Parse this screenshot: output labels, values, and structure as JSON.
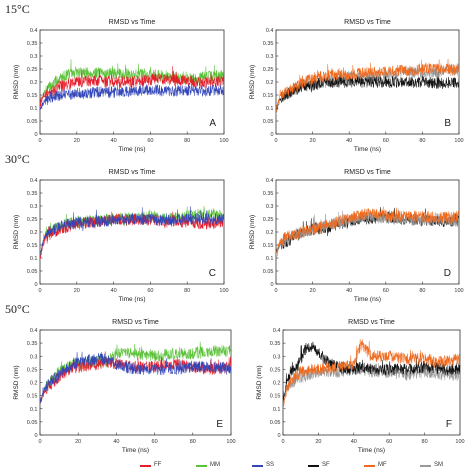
{
  "section_labels": [
    "15°C",
    "30°C",
    "50°C"
  ],
  "colors": {
    "FF": "#e41e2b",
    "MM": "#5cc23a",
    "SS": "#3346b8",
    "SF": "#111111",
    "MF": "#f06a1e",
    "SM": "#999999"
  },
  "legend": [
    {
      "name": "FF",
      "color": "#e41e2b"
    },
    {
      "name": "MM",
      "color": "#5cc23a"
    },
    {
      "name": "SS",
      "color": "#3346b8"
    },
    {
      "name": "SF",
      "color": "#111111"
    },
    {
      "name": "MF",
      "color": "#f06a1e"
    },
    {
      "name": "SM",
      "color": "#999999"
    }
  ],
  "chart_data": [
    {
      "type": "line",
      "panel_label": "A",
      "temperature": "15°C",
      "title": "RMSD vs Time",
      "xlabel": "Time (ns)",
      "ylabel": "RMSD (nm)",
      "xlim": [
        0,
        100
      ],
      "ylim": [
        0,
        0.4
      ],
      "xticks": [
        "0",
        "20",
        "40",
        "60",
        "80",
        "100"
      ],
      "yticks": [
        "0",
        "0.05",
        "0.1",
        "0.15",
        "0.2",
        "0.25",
        "0.3",
        "0.35",
        "0.4"
      ],
      "series": [
        {
          "name": "MM",
          "x": [
            0,
            2,
            5,
            10,
            15,
            20,
            30,
            40,
            50,
            60,
            70,
            80,
            90,
            100
          ],
          "y": [
            0.11,
            0.16,
            0.18,
            0.21,
            0.23,
            0.235,
            0.235,
            0.23,
            0.23,
            0.23,
            0.22,
            0.21,
            0.22,
            0.225
          ]
        },
        {
          "name": "FF",
          "x": [
            0,
            2,
            5,
            10,
            15,
            20,
            30,
            40,
            50,
            60,
            70,
            80,
            90,
            100
          ],
          "y": [
            0.1,
            0.15,
            0.16,
            0.18,
            0.19,
            0.2,
            0.205,
            0.2,
            0.2,
            0.21,
            0.21,
            0.205,
            0.2,
            0.205
          ]
        },
        {
          "name": "SS",
          "x": [
            0,
            2,
            5,
            10,
            15,
            20,
            30,
            40,
            50,
            60,
            70,
            80,
            90,
            100
          ],
          "y": [
            0.1,
            0.12,
            0.14,
            0.15,
            0.15,
            0.155,
            0.16,
            0.16,
            0.165,
            0.17,
            0.165,
            0.17,
            0.165,
            0.17
          ]
        }
      ]
    },
    {
      "type": "line",
      "panel_label": "B",
      "temperature": "15°C",
      "title": "RMSD vs Time",
      "xlabel": "Time (ns)",
      "ylabel": "RMSD (nm)",
      "xlim": [
        0,
        100
      ],
      "ylim": [
        0,
        0.4
      ],
      "xticks": [
        "0",
        "20",
        "40",
        "60",
        "80",
        "100"
      ],
      "yticks": [
        "0",
        "0.05",
        "0.1",
        "0.15",
        "0.2",
        "0.25",
        "0.3",
        "0.35",
        "0.4"
      ],
      "series": [
        {
          "name": "SM",
          "x": [
            0,
            2,
            5,
            10,
            15,
            20,
            30,
            40,
            50,
            60,
            70,
            80,
            90,
            100
          ],
          "y": [
            0.08,
            0.13,
            0.15,
            0.17,
            0.19,
            0.2,
            0.21,
            0.22,
            0.22,
            0.23,
            0.24,
            0.23,
            0.24,
            0.25
          ]
        },
        {
          "name": "SF",
          "x": [
            0,
            2,
            5,
            10,
            15,
            20,
            30,
            40,
            50,
            60,
            70,
            80,
            90,
            100
          ],
          "y": [
            0.09,
            0.13,
            0.15,
            0.17,
            0.18,
            0.19,
            0.2,
            0.2,
            0.2,
            0.2,
            0.2,
            0.2,
            0.195,
            0.2
          ]
        },
        {
          "name": "MF",
          "x": [
            0,
            2,
            5,
            10,
            15,
            20,
            30,
            40,
            50,
            60,
            70,
            80,
            90,
            100
          ],
          "y": [
            0.09,
            0.14,
            0.16,
            0.18,
            0.2,
            0.215,
            0.225,
            0.23,
            0.235,
            0.24,
            0.245,
            0.25,
            0.25,
            0.245
          ]
        }
      ]
    },
    {
      "type": "line",
      "panel_label": "C",
      "temperature": "30°C",
      "title": "RMSD vs Time",
      "xlabel": "Time (ns)",
      "ylabel": "RMSD (nm)",
      "xlim": [
        0,
        100
      ],
      "ylim": [
        0,
        0.4
      ],
      "xticks": [
        "0",
        "20",
        "40",
        "60",
        "80",
        "100"
      ],
      "yticks": [
        "0",
        "0.05",
        "0.1",
        "0.15",
        "0.2",
        "0.25",
        "0.3",
        "0.35",
        "0.4"
      ],
      "series": [
        {
          "name": "MM",
          "x": [
            0,
            2,
            5,
            10,
            15,
            20,
            30,
            40,
            50,
            60,
            70,
            80,
            90,
            100
          ],
          "y": [
            0.1,
            0.17,
            0.2,
            0.22,
            0.235,
            0.24,
            0.245,
            0.25,
            0.255,
            0.26,
            0.25,
            0.26,
            0.27,
            0.26
          ]
        },
        {
          "name": "FF",
          "x": [
            0,
            2,
            5,
            10,
            15,
            20,
            30,
            40,
            50,
            60,
            70,
            80,
            90,
            100
          ],
          "y": [
            0.1,
            0.16,
            0.19,
            0.21,
            0.22,
            0.23,
            0.24,
            0.25,
            0.245,
            0.245,
            0.24,
            0.24,
            0.23,
            0.24
          ]
        },
        {
          "name": "SS",
          "x": [
            0,
            2,
            5,
            10,
            15,
            20,
            30,
            40,
            50,
            60,
            70,
            80,
            90,
            100
          ],
          "y": [
            0.11,
            0.17,
            0.2,
            0.22,
            0.23,
            0.235,
            0.24,
            0.245,
            0.25,
            0.25,
            0.245,
            0.25,
            0.25,
            0.25
          ]
        }
      ]
    },
    {
      "type": "line",
      "panel_label": "D",
      "temperature": "30°C",
      "title": "RMSD vs Time",
      "xlabel": "Time (ns)",
      "ylabel": "RMSD (nm)",
      "xlim": [
        0,
        100
      ],
      "ylim": [
        0,
        0.4
      ],
      "xticks": [
        "0",
        "20",
        "40",
        "60",
        "80",
        "100"
      ],
      "yticks": [
        "0",
        "0.05",
        "0.1",
        "0.15",
        "0.2",
        "0.25",
        "0.3",
        "0.35",
        "0.4"
      ],
      "series": [
        {
          "name": "SF",
          "x": [
            0,
            2,
            5,
            10,
            15,
            20,
            30,
            40,
            50,
            60,
            70,
            80,
            90,
            100
          ],
          "y": [
            0.12,
            0.15,
            0.16,
            0.18,
            0.2,
            0.21,
            0.22,
            0.24,
            0.25,
            0.26,
            0.25,
            0.25,
            0.24,
            0.245
          ]
        },
        {
          "name": "SM",
          "x": [
            0,
            2,
            5,
            10,
            15,
            20,
            30,
            40,
            50,
            60,
            70,
            80,
            90,
            100
          ],
          "y": [
            0.12,
            0.15,
            0.17,
            0.19,
            0.2,
            0.21,
            0.23,
            0.245,
            0.26,
            0.25,
            0.25,
            0.245,
            0.25,
            0.24
          ]
        },
        {
          "name": "MF",
          "x": [
            0,
            2,
            5,
            10,
            15,
            20,
            30,
            40,
            50,
            60,
            70,
            80,
            90,
            100
          ],
          "y": [
            0.12,
            0.16,
            0.18,
            0.19,
            0.2,
            0.21,
            0.23,
            0.255,
            0.27,
            0.265,
            0.26,
            0.26,
            0.255,
            0.26
          ]
        }
      ]
    },
    {
      "type": "line",
      "panel_label": "E",
      "temperature": "50°C",
      "title": "RMSD vs Time",
      "xlabel": "Time (ns)",
      "ylabel": "RMSD (nm)",
      "xlim": [
        0,
        100
      ],
      "ylim": [
        0,
        0.4
      ],
      "xticks": [
        "0",
        "20",
        "40",
        "60",
        "80",
        "100"
      ],
      "yticks": [
        "0",
        "0.05",
        "0.1",
        "0.15",
        "0.2",
        "0.25",
        "0.3",
        "0.35",
        "0.4"
      ],
      "series": [
        {
          "name": "MM",
          "x": [
            0,
            2,
            5,
            10,
            15,
            20,
            30,
            35,
            40,
            50,
            60,
            70,
            80,
            90,
            100
          ],
          "y": [
            0.12,
            0.17,
            0.2,
            0.24,
            0.26,
            0.27,
            0.28,
            0.28,
            0.31,
            0.31,
            0.3,
            0.31,
            0.31,
            0.32,
            0.32
          ]
        },
        {
          "name": "FF",
          "x": [
            0,
            2,
            5,
            10,
            15,
            20,
            30,
            35,
            40,
            50,
            60,
            70,
            80,
            90,
            100
          ],
          "y": [
            0.12,
            0.16,
            0.19,
            0.22,
            0.25,
            0.26,
            0.27,
            0.28,
            0.27,
            0.26,
            0.26,
            0.27,
            0.26,
            0.25,
            0.26
          ]
        },
        {
          "name": "SS",
          "x": [
            0,
            2,
            5,
            10,
            15,
            20,
            30,
            35,
            40,
            50,
            60,
            70,
            80,
            90,
            100
          ],
          "y": [
            0.12,
            0.17,
            0.2,
            0.23,
            0.26,
            0.28,
            0.29,
            0.29,
            0.27,
            0.25,
            0.25,
            0.25,
            0.26,
            0.26,
            0.25
          ]
        }
      ]
    },
    {
      "type": "line",
      "panel_label": "F",
      "temperature": "50°C",
      "title": "RMSD vs Time",
      "xlabel": "Time (ns)",
      "ylabel": "RMSD (nm)",
      "xlim": [
        0,
        100
      ],
      "ylim": [
        0,
        0.4
      ],
      "xticks": [
        "0",
        "20",
        "40",
        "60",
        "80",
        "100"
      ],
      "yticks": [
        "0",
        "0.05",
        "0.1",
        "0.15",
        "0.2",
        "0.25",
        "0.3",
        "0.35",
        "0.4"
      ],
      "series": [
        {
          "name": "SM",
          "x": [
            0,
            2,
            5,
            10,
            15,
            20,
            30,
            40,
            45,
            50,
            60,
            70,
            80,
            90,
            100
          ],
          "y": [
            0.12,
            0.17,
            0.2,
            0.22,
            0.23,
            0.24,
            0.24,
            0.25,
            0.25,
            0.24,
            0.24,
            0.23,
            0.24,
            0.23,
            0.23
          ]
        },
        {
          "name": "SF",
          "x": [
            0,
            2,
            5,
            8,
            12,
            15,
            18,
            22,
            25,
            30,
            40,
            45,
            50,
            60,
            70,
            80,
            90,
            100
          ],
          "y": [
            0.12,
            0.2,
            0.24,
            0.26,
            0.32,
            0.34,
            0.33,
            0.3,
            0.28,
            0.26,
            0.25,
            0.26,
            0.25,
            0.25,
            0.25,
            0.26,
            0.25,
            0.25
          ]
        },
        {
          "name": "MF",
          "x": [
            0,
            2,
            5,
            10,
            15,
            20,
            30,
            40,
            43,
            45,
            50,
            60,
            70,
            80,
            90,
            100
          ],
          "y": [
            0.1,
            0.18,
            0.21,
            0.24,
            0.25,
            0.25,
            0.26,
            0.27,
            0.33,
            0.34,
            0.3,
            0.3,
            0.29,
            0.29,
            0.28,
            0.29
          ]
        }
      ]
    }
  ]
}
